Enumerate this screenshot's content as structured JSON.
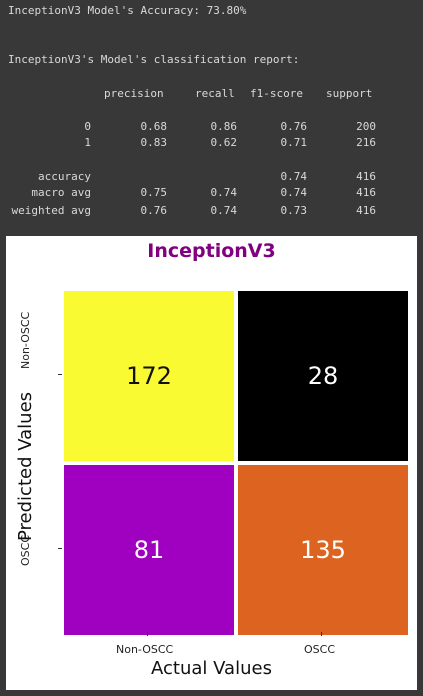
{
  "accuracy_line": "InceptionV3 Model's Accuracy: 73.80%",
  "report_title": "InceptionV3's Model's classification report:",
  "report": {
    "headers": [
      "precision",
      "recall",
      "f1-score",
      "support"
    ],
    "rows": [
      {
        "label": "0",
        "precision": "0.68",
        "recall": "0.86",
        "f1": "0.76",
        "support": "200"
      },
      {
        "label": "1",
        "precision": "0.83",
        "recall": "0.62",
        "f1": "0.71",
        "support": "216"
      }
    ],
    "summary": [
      {
        "label": "accuracy",
        "precision": "",
        "recall": "",
        "f1": "0.74",
        "support": "416"
      },
      {
        "label": "macro avg",
        "precision": "0.75",
        "recall": "0.74",
        "f1": "0.74",
        "support": "416"
      },
      {
        "label": "weighted avg",
        "precision": "0.76",
        "recall": "0.74",
        "f1": "0.73",
        "support": "416"
      }
    ]
  },
  "chart_data": {
    "type": "heatmap",
    "title": "InceptionV3",
    "xlabel": "Actual Values",
    "ylabel": "Predicted Values",
    "x_categories": [
      "Non-OSCC",
      "OSCC"
    ],
    "y_categories": [
      "Non-OSCC",
      "OSCC"
    ],
    "values": [
      [
        172,
        28
      ],
      [
        81,
        135
      ]
    ],
    "colormap": "gnuplot",
    "cell_colors": [
      [
        "#fafa32",
        "#000000"
      ],
      [
        "#a000c0",
        "#dc6420"
      ]
    ],
    "cell_text_colors": [
      [
        "#111111",
        "#ffffff"
      ],
      [
        "#ffffff",
        "#ffffff"
      ]
    ],
    "title_color": "#800080"
  }
}
